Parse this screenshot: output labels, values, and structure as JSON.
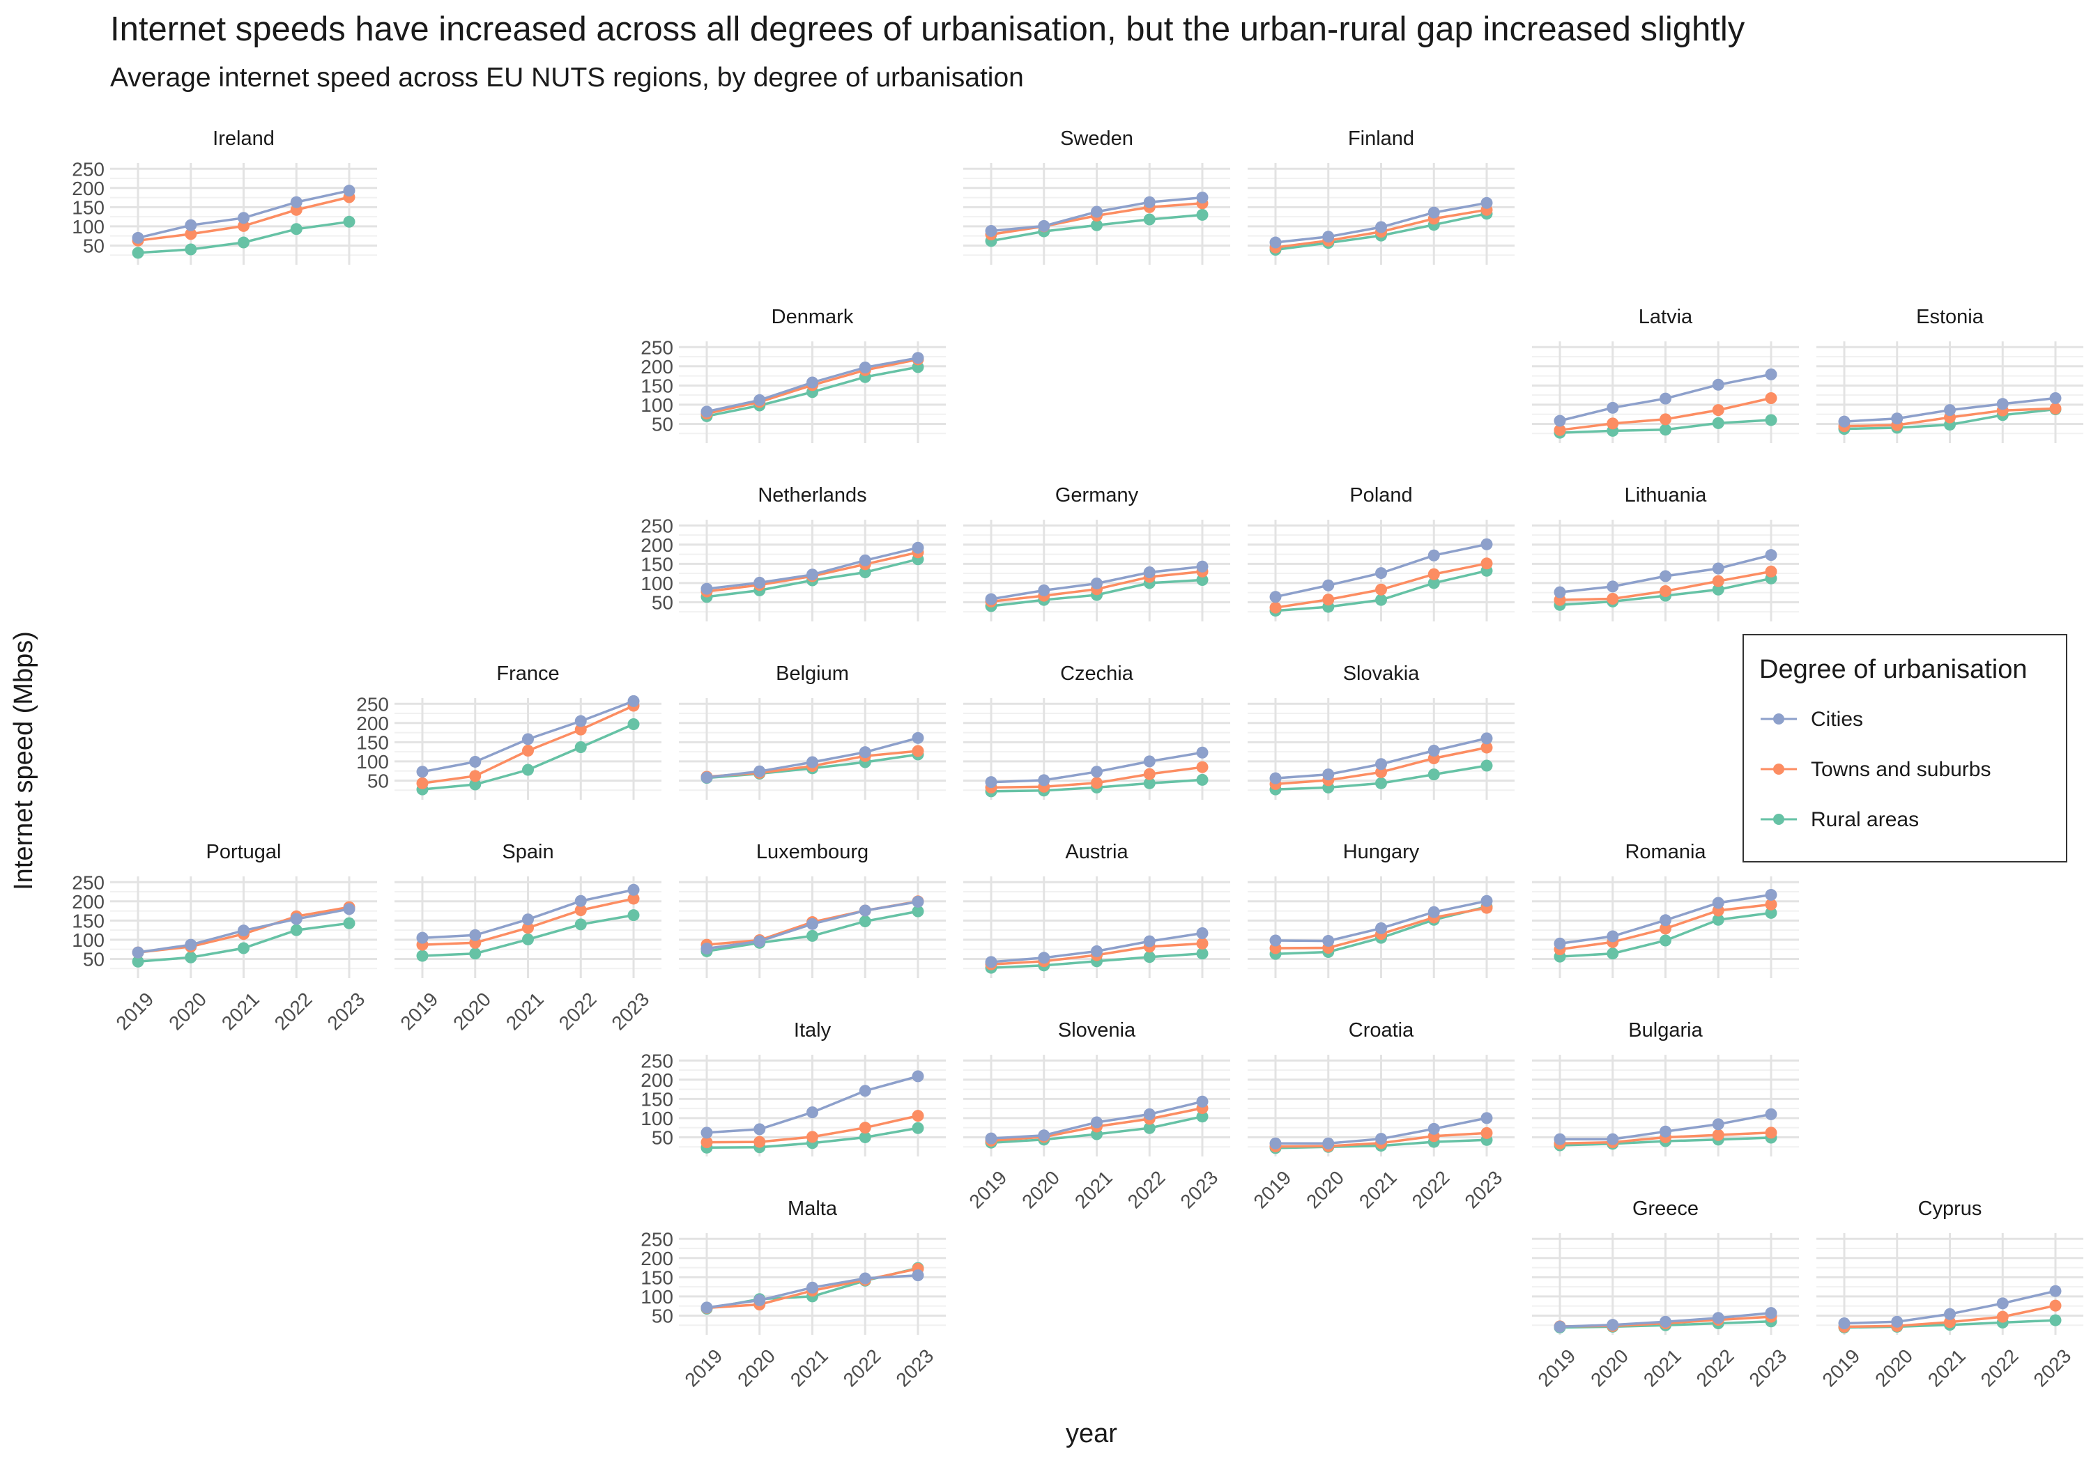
{
  "chart_data": {
    "type": "line",
    "title": "Internet speeds have increased across all degrees of urbanisation, but the urban-rural gap increased slightly",
    "subtitle": "Average internet speed across EU NUTS regions, by degree of urbanisation",
    "xlabel": "year",
    "ylabel": "Internet speed (Mbps)",
    "x": [
      "2019",
      "2020",
      "2021",
      "2022",
      "2023"
    ],
    "y_ticks": [
      50,
      100,
      150,
      200,
      250
    ],
    "ylim": [
      0,
      265
    ],
    "grid": true,
    "legend": {
      "title": "Degree of urbanisation",
      "placement": "right",
      "entries": [
        {
          "name": "Cities",
          "color": "#8da0cb"
        },
        {
          "name": "Towns and suburbs",
          "color": "#fc8d62"
        },
        {
          "name": "Rural areas",
          "color": "#66c2a5"
        }
      ]
    },
    "panels": [
      {
        "country": "Ireland",
        "row": 0,
        "col": 0,
        "cities": [
          70,
          103,
          122,
          163,
          193
        ],
        "towns": [
          63,
          80,
          101,
          143,
          176
        ],
        "rural": [
          31,
          40,
          58,
          93,
          112
        ]
      },
      {
        "country": "Sweden",
        "row": 0,
        "col": 3,
        "cities": [
          88,
          101,
          138,
          163,
          175
        ],
        "towns": [
          79,
          100,
          128,
          150,
          160
        ],
        "rural": [
          62,
          87,
          103,
          118,
          130
        ]
      },
      {
        "country": "Finland",
        "row": 0,
        "col": 4,
        "cities": [
          58,
          73,
          98,
          136,
          161
        ],
        "towns": [
          45,
          63,
          86,
          120,
          143
        ],
        "rural": [
          39,
          57,
          76,
          104,
          133
        ]
      },
      {
        "country": "Denmark",
        "row": 1,
        "col": 2,
        "cities": [
          82,
          112,
          158,
          197,
          222
        ],
        "towns": [
          77,
          107,
          151,
          190,
          218
        ],
        "rural": [
          70,
          98,
          133,
          172,
          198
        ]
      },
      {
        "country": "Latvia",
        "row": 1,
        "col": 5,
        "cities": [
          58,
          92,
          116,
          152,
          179
        ],
        "towns": [
          34,
          51,
          62,
          86,
          117
        ],
        "rural": [
          27,
          32,
          35,
          52,
          60
        ]
      },
      {
        "country": "Estonia",
        "row": 1,
        "col": 6,
        "cities": [
          56,
          64,
          86,
          102,
          117
        ],
        "towns": [
          44,
          47,
          67,
          85,
          90
        ],
        "rural": [
          37,
          40,
          48,
          73,
          88
        ]
      },
      {
        "country": "Netherlands",
        "row": 2,
        "col": 2,
        "cities": [
          85,
          101,
          122,
          159,
          192
        ],
        "towns": [
          78,
          95,
          118,
          149,
          180
        ],
        "rural": [
          64,
          81,
          107,
          128,
          162
        ]
      },
      {
        "country": "Germany",
        "row": 2,
        "col": 3,
        "cities": [
          58,
          81,
          99,
          128,
          143
        ],
        "towns": [
          52,
          67,
          84,
          116,
          130
        ],
        "rural": [
          40,
          56,
          69,
          100,
          108
        ]
      },
      {
        "country": "Poland",
        "row": 2,
        "col": 4,
        "cities": [
          64,
          94,
          126,
          172,
          201
        ],
        "towns": [
          36,
          57,
          83,
          123,
          151
        ],
        "rural": [
          28,
          38,
          56,
          100,
          132
        ]
      },
      {
        "country": "Lithuania",
        "row": 2,
        "col": 5,
        "cities": [
          76,
          91,
          118,
          138,
          173
        ],
        "towns": [
          56,
          59,
          79,
          105,
          130
        ],
        "rural": [
          43,
          52,
          67,
          83,
          112
        ]
      },
      {
        "country": "France",
        "row": 3,
        "col": 1,
        "cities": [
          73,
          99,
          158,
          205,
          257
        ],
        "towns": [
          43,
          62,
          128,
          183,
          245
        ],
        "rural": [
          27,
          40,
          78,
          137,
          197
        ]
      },
      {
        "country": "Belgium",
        "row": 3,
        "col": 2,
        "cities": [
          58,
          74,
          98,
          124,
          161
        ],
        "towns": [
          60,
          70,
          88,
          114,
          127
        ],
        "rural": [
          57,
          68,
          82,
          98,
          118
        ]
      },
      {
        "country": "Czechia",
        "row": 3,
        "col": 3,
        "cities": [
          46,
          51,
          73,
          100,
          123
        ],
        "towns": [
          32,
          34,
          44,
          67,
          85
        ],
        "rural": [
          22,
          24,
          32,
          43,
          52
        ]
      },
      {
        "country": "Slovakia",
        "row": 3,
        "col": 4,
        "cities": [
          56,
          66,
          93,
          128,
          160
        ],
        "towns": [
          41,
          51,
          72,
          108,
          136
        ],
        "rural": [
          27,
          32,
          43,
          66,
          89
        ]
      },
      {
        "country": "Portugal",
        "row": 4,
        "col": 0,
        "cities": [
          67,
          87,
          124,
          154,
          180
        ],
        "towns": [
          67,
          82,
          115,
          161,
          185
        ],
        "rural": [
          43,
          54,
          78,
          125,
          143
        ]
      },
      {
        "country": "Spain",
        "row": 4,
        "col": 1,
        "cities": [
          105,
          112,
          153,
          201,
          230
        ],
        "towns": [
          87,
          92,
          131,
          177,
          207
        ],
        "rural": [
          58,
          64,
          101,
          140,
          164
        ]
      },
      {
        "country": "Luxembourg",
        "row": 4,
        "col": 2,
        "cities": [
          77,
          96,
          141,
          176,
          199
        ],
        "towns": [
          87,
          99,
          146,
          176,
          200
        ],
        "rural": [
          70,
          92,
          110,
          148,
          174
        ]
      },
      {
        "country": "Austria",
        "row": 4,
        "col": 3,
        "cities": [
          42,
          53,
          70,
          96,
          117
        ],
        "towns": [
          36,
          44,
          60,
          82,
          90
        ],
        "rural": [
          27,
          33,
          44,
          55,
          64
        ]
      },
      {
        "country": "Hungary",
        "row": 4,
        "col": 4,
        "cities": [
          98,
          97,
          130,
          172,
          201
        ],
        "towns": [
          78,
          79,
          115,
          158,
          183
        ],
        "rural": [
          63,
          68,
          105,
          152,
          186
        ]
      },
      {
        "country": "Romania",
        "row": 4,
        "col": 5,
        "cities": [
          90,
          109,
          151,
          196,
          217
        ],
        "towns": [
          75,
          94,
          129,
          176,
          192
        ],
        "rural": [
          56,
          64,
          98,
          152,
          170
        ]
      },
      {
        "country": "Italy",
        "row": 5,
        "col": 2,
        "cities": [
          62,
          71,
          115,
          171,
          209
        ],
        "towns": [
          37,
          38,
          51,
          75,
          106
        ],
        "rural": [
          23,
          24,
          35,
          50,
          74
        ]
      },
      {
        "country": "Slovenia",
        "row": 5,
        "col": 3,
        "cities": [
          47,
          55,
          89,
          110,
          143
        ],
        "towns": [
          41,
          51,
          78,
          98,
          126
        ],
        "rural": [
          36,
          44,
          58,
          74,
          104
        ]
      },
      {
        "country": "Croatia",
        "row": 5,
        "col": 4,
        "cities": [
          34,
          34,
          46,
          72,
          100
        ],
        "towns": [
          26,
          27,
          35,
          53,
          61
        ],
        "rural": [
          22,
          25,
          28,
          38,
          43
        ]
      },
      {
        "country": "Bulgaria",
        "row": 5,
        "col": 5,
        "cities": [
          45,
          45,
          65,
          84,
          110
        ],
        "towns": [
          34,
          37,
          50,
          56,
          62
        ],
        "rural": [
          29,
          33,
          40,
          44,
          49
        ]
      },
      {
        "country": "Malta",
        "row": 6,
        "col": 2,
        "cities": [
          71,
          90,
          123,
          147,
          155
        ],
        "towns": [
          70,
          79,
          115,
          143,
          172
        ],
        "rural": [
          68,
          93,
          100,
          141,
          174
        ]
      },
      {
        "country": "Greece",
        "row": 6,
        "col": 5,
        "cities": [
          21,
          26,
          34,
          44,
          57
        ],
        "towns": [
          22,
          23,
          30,
          39,
          47
        ],
        "rural": [
          19,
          21,
          25,
          30,
          35
        ]
      },
      {
        "country": "Cyprus",
        "row": 6,
        "col": 6,
        "cities": [
          30,
          34,
          54,
          82,
          114
        ],
        "towns": [
          21,
          23,
          33,
          47,
          76
        ],
        "rural": [
          19,
          21,
          26,
          32,
          38
        ]
      }
    ]
  }
}
